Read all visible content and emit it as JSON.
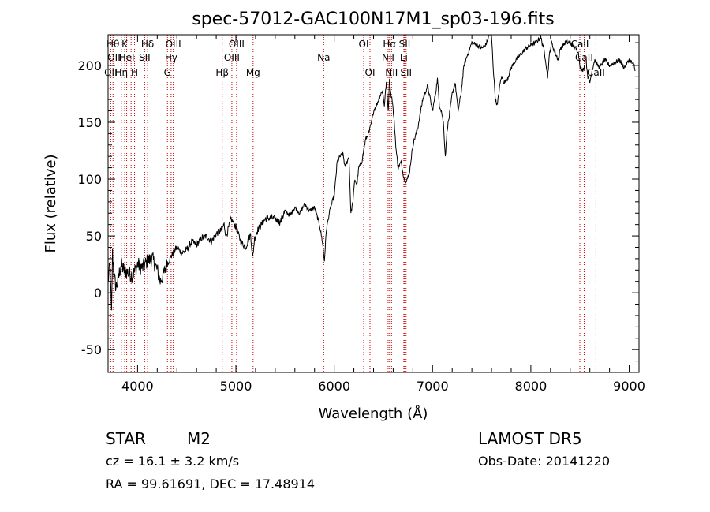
{
  "chart_data": {
    "type": "line",
    "title": "spec-57012-GAC100N17M1_sp03-196.fits",
    "xlabel": "Wavelength (Å)",
    "ylabel": "Flux (relative)",
    "xlim": [
      3700,
      9100
    ],
    "ylim": [
      -70,
      227
    ],
    "x_ticks": [
      4000,
      5000,
      6000,
      7000,
      8000,
      9000
    ],
    "y_ticks": [
      -50,
      0,
      50,
      100,
      150,
      200
    ],
    "grid": false,
    "spectral_lines": [
      {
        "wavelength": 3727,
        "label": "OII",
        "row": 2
      },
      {
        "wavelength": 3750,
        "label": "Hθ",
        "row": 0
      },
      {
        "wavelength": 3760,
        "label": "OII",
        "row": 1
      },
      {
        "wavelength": 3835,
        "label": "Hη",
        "row": 2
      },
      {
        "wavelength": 3869,
        "label": "K",
        "row": 0
      },
      {
        "wavelength": 3889,
        "label": "HeI",
        "row": 1
      },
      {
        "wavelength": 3934,
        "label": "",
        "row": 0
      },
      {
        "wavelength": 3969,
        "label": "H",
        "row": 2
      },
      {
        "wavelength": 4072,
        "label": "SII",
        "row": 1
      },
      {
        "wavelength": 4102,
        "label": "Hδ",
        "row": 0
      },
      {
        "wavelength": 4304,
        "label": "G",
        "row": 2
      },
      {
        "wavelength": 4341,
        "label": "Hγ",
        "row": 1
      },
      {
        "wavelength": 4363,
        "label": "OIII",
        "row": 0
      },
      {
        "wavelength": 4861,
        "label": "Hβ",
        "row": 2
      },
      {
        "wavelength": 4959,
        "label": "OIII",
        "row": 1
      },
      {
        "wavelength": 5007,
        "label": "OIII",
        "row": 0
      },
      {
        "wavelength": 5175,
        "label": "Mg",
        "row": 2
      },
      {
        "wavelength": 5893,
        "label": "Na",
        "row": 1
      },
      {
        "wavelength": 6300,
        "label": "OI",
        "row": 0
      },
      {
        "wavelength": 6364,
        "label": "OI",
        "row": 2
      },
      {
        "wavelength": 6548,
        "label": "NII",
        "row": 1
      },
      {
        "wavelength": 6563,
        "label": "Hα",
        "row": 0
      },
      {
        "wavelength": 6583,
        "label": "NII",
        "row": 2
      },
      {
        "wavelength": 6708,
        "label": "Li",
        "row": 1
      },
      {
        "wavelength": 6717,
        "label": "SII",
        "row": 0
      },
      {
        "wavelength": 6731,
        "label": "SII",
        "row": 2
      },
      {
        "wavelength": 8498,
        "label": "CaII",
        "row": 0
      },
      {
        "wavelength": 8542,
        "label": "CaII",
        "row": 1
      },
      {
        "wavelength": 8662,
        "label": "CaII",
        "row": 2
      }
    ],
    "series": [
      {
        "x": [
          3700,
          3720,
          3735,
          3745,
          3760,
          3780,
          3800,
          3830,
          3860,
          3900,
          3950,
          4000,
          4050,
          4100,
          4150,
          4200,
          4230,
          4260,
          4300,
          4330,
          4360,
          4400,
          4450,
          4500,
          4550,
          4600,
          4650,
          4700,
          4750,
          4800,
          4850,
          4880,
          4900,
          4920,
          4950,
          5000,
          5050,
          5100,
          5150,
          5170,
          5190,
          5220,
          5260,
          5300,
          5350,
          5400,
          5450,
          5500,
          5550,
          5600,
          5650,
          5700,
          5750,
          5800,
          5850,
          5880,
          5900,
          5920,
          5950,
          5980,
          6000,
          6030,
          6060,
          6090,
          6110,
          6130,
          6150,
          6170,
          6190,
          6210,
          6230,
          6250,
          6280,
          6300,
          6320,
          6350,
          6380,
          6400,
          6430,
          6460,
          6490,
          6510,
          6530,
          6550,
          6563,
          6575,
          6590,
          6610,
          6630,
          6650,
          6680,
          6700,
          6720,
          6740,
          6760,
          6800,
          6850,
          6900,
          6950,
          7000,
          7030,
          7050,
          7070,
          7090,
          7110,
          7130,
          7150,
          7170,
          7200,
          7230,
          7260,
          7290,
          7320,
          7350,
          7380,
          7400,
          7450,
          7500,
          7540,
          7560,
          7580,
          7600,
          7620,
          7640,
          7660,
          7680,
          7700,
          7730,
          7760,
          7800,
          7850,
          7900,
          7950,
          8000,
          8050,
          8100,
          8130,
          8150,
          8170,
          8190,
          8210,
          8230,
          8250,
          8280,
          8300,
          8350,
          8400,
          8450,
          8480,
          8500,
          8520,
          8540,
          8560,
          8580,
          8600,
          8620,
          8650,
          8680,
          8700,
          8750,
          8800,
          8850,
          8900,
          8950,
          9000,
          9050,
          9060
        ],
        "y": [
          10,
          25,
          -20,
          35,
          15,
          5,
          10,
          25,
          20,
          18,
          15,
          25,
          22,
          28,
          30,
          20,
          10,
          15,
          25,
          30,
          35,
          40,
          35,
          38,
          45,
          42,
          48,
          50,
          45,
          52,
          55,
          60,
          50,
          55,
          65,
          58,
          45,
          40,
          52,
          30,
          48,
          55,
          60,
          65,
          66,
          65,
          62,
          72,
          68,
          75,
          70,
          78,
          72,
          75,
          60,
          45,
          28,
          55,
          70,
          80,
          85,
          115,
          120,
          122,
          110,
          115,
          120,
          70,
          80,
          100,
          95,
          110,
          115,
          125,
          135,
          140,
          150,
          160,
          165,
          172,
          178,
          165,
          185,
          160,
          190,
          175,
          170,
          150,
          125,
          110,
          115,
          105,
          98,
          100,
          103,
          130,
          145,
          170,
          182,
          160,
          175,
          188,
          165,
          160,
          150,
          120,
          145,
          155,
          175,
          185,
          160,
          175,
          200,
          208,
          215,
          220,
          218,
          215,
          218,
          222,
          228,
          225,
          195,
          170,
          165,
          180,
          190,
          185,
          188,
          198,
          205,
          210,
          215,
          218,
          220,
          225,
          215,
          205,
          190,
          210,
          220,
          215,
          210,
          205,
          215,
          220,
          220,
          215,
          213,
          200,
          195,
          198,
          205,
          190,
          185,
          195,
          205,
          200,
          198,
          205,
          200,
          202,
          205,
          198,
          205,
          200,
          195
        ]
      }
    ]
  },
  "annotations": {
    "object_type": "STAR",
    "subclass": "M2",
    "survey": "LAMOST DR5",
    "cz": "cz = 16.1 ± 3.2 km/s",
    "obs_date": "Obs-Date: 20141220",
    "coords": "RA =  99.61691, DEC =  17.48914"
  },
  "colors": {
    "line": "#000000",
    "marker_line": "#d00000"
  }
}
